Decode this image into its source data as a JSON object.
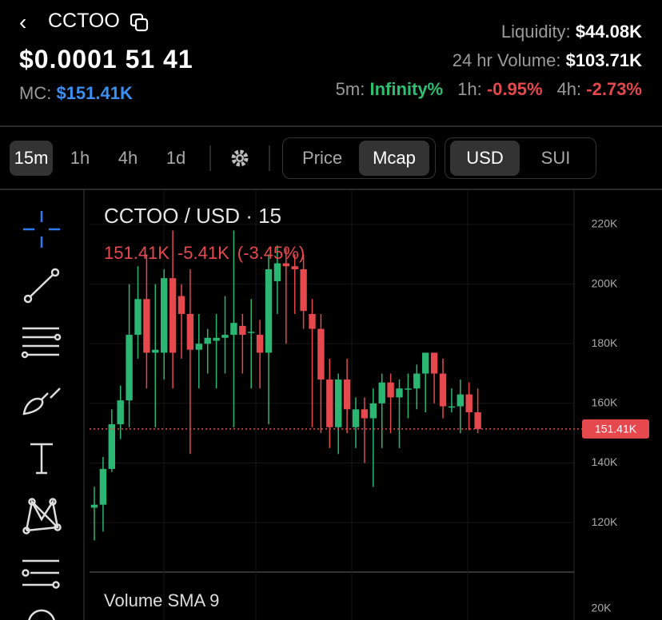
{
  "header": {
    "back_title": "CCTOO",
    "price": "$0.0001 51 41",
    "mc_label": "MC:",
    "mc_value": "$151.41K",
    "stats": [
      {
        "label": "Liquidity:",
        "value": "$44.08K"
      },
      {
        "label": "24 hr Volume:",
        "value": "$103.71K"
      }
    ],
    "changes": [
      {
        "label": "5m:",
        "value": "Infinity%",
        "color": "#2fbf71"
      },
      {
        "label": "1h:",
        "value": "-0.95%",
        "color": "#e5484d"
      },
      {
        "label": "4h:",
        "value": "-2.73%",
        "color": "#e5484d"
      }
    ]
  },
  "toolbar": {
    "intervals": [
      "15m",
      "1h",
      "4h",
      "1d"
    ],
    "selected_interval": 0,
    "modes": [
      "Price",
      "Mcap"
    ],
    "selected_mode": 1,
    "currencies": [
      "USD",
      "SUI"
    ],
    "selected_currency": 0
  },
  "chart_data": {
    "type": "candlestick",
    "title": "CCTOO / USD · 15",
    "legend_values": [
      "151.41K",
      "-5.41K",
      "(-3.45%)"
    ],
    "legend_color": "#e5484d",
    "up_color": "#2bb673",
    "down_color": "#e5484d",
    "open": [
      125000,
      126000,
      138000,
      153000,
      161000,
      183000,
      195000,
      177000,
      177000,
      202000,
      196000,
      190000,
      178000,
      180000,
      181000,
      182000,
      183000,
      186000,
      184000,
      183000,
      177000,
      201000,
      207000,
      206000,
      205000,
      190000,
      185000,
      168000,
      152000,
      168000,
      152000,
      158000,
      155000,
      160000,
      167000,
      162000,
      165000,
      165000,
      170000,
      177000,
      170000,
      159000,
      159000,
      163000,
      157000
    ],
    "high": [
      132000,
      142000,
      158000,
      166000,
      200000,
      206000,
      210000,
      200000,
      205000,
      218000,
      200000,
      205000,
      190000,
      185000,
      190000,
      196000,
      218000,
      190000,
      195000,
      188000,
      210000,
      213000,
      212000,
      210000,
      210000,
      195000,
      190000,
      175000,
      170000,
      175000,
      162000,
      162000,
      165000,
      170000,
      170000,
      168000,
      170000,
      173000,
      177000,
      177000,
      175000,
      165000,
      168000,
      167000,
      165000
    ],
    "low": [
      114000,
      117000,
      137000,
      148000,
      152000,
      175000,
      165000,
      152000,
      168000,
      165000,
      175000,
      143000,
      165000,
      170000,
      165000,
      170000,
      152000,
      170000,
      165000,
      165000,
      153000,
      190000,
      180000,
      190000,
      185000,
      152000,
      150000,
      145000,
      143000,
      150000,
      145000,
      140000,
      132000,
      145000,
      150000,
      145000,
      155000,
      158000,
      157000,
      160000,
      155000,
      157000,
      150000,
      151000,
      150000
    ],
    "close": [
      126000,
      138000,
      153000,
      161000,
      183000,
      195000,
      177000,
      178000,
      202000,
      177000,
      190000,
      178000,
      180000,
      182000,
      182000,
      183000,
      187000,
      183000,
      184000,
      177000,
      205000,
      207000,
      206000,
      205000,
      191000,
      185000,
      168000,
      152000,
      168000,
      158000,
      158000,
      155000,
      160000,
      167000,
      162000,
      165000,
      165000,
      170000,
      177000,
      170000,
      159000,
      159000,
      163000,
      157000,
      151410
    ],
    "ylim": [
      103400,
      231000
    ],
    "yticks": [
      {
        "value": 120000,
        "label": "120K"
      },
      {
        "value": 140000,
        "label": "140K"
      },
      {
        "value": 160000,
        "label": "160K"
      },
      {
        "value": 180000,
        "label": "180K"
      },
      {
        "value": 200000,
        "label": "200K"
      },
      {
        "value": 220000,
        "label": "220K"
      }
    ],
    "current_price": {
      "value": 151410,
      "label": "151.41K"
    },
    "volume": {
      "title": "Volume SMA 9",
      "yticks": [
        {
          "value": 20000,
          "label": "20K"
        }
      ]
    }
  }
}
